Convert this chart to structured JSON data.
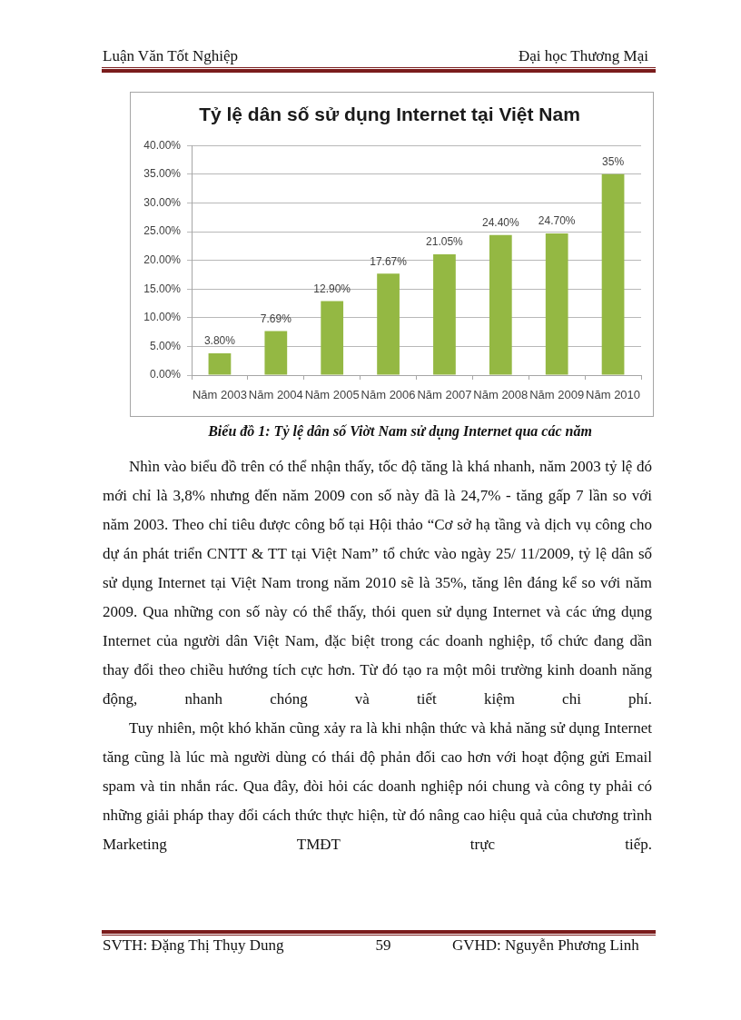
{
  "chart_data": {
    "type": "bar",
    "title": "Tỷ lệ dân số sử dụng Internet tại Việt Nam",
    "categories": [
      "Năm 2003",
      "Năm 2004",
      "Năm 2005",
      "Năm 2006",
      "Năm 2007",
      "Năm 2008",
      "Năm 2009",
      "Năm 2010"
    ],
    "values": [
      3.8,
      7.69,
      12.9,
      17.67,
      21.05,
      24.4,
      24.7,
      35
    ],
    "value_labels": [
      "3.80%",
      "7.69%",
      "12.90%",
      "17.67%",
      "21.05%",
      "24.40%",
      "24.70%",
      "35%"
    ],
    "color": "#94b843",
    "ylim": [
      0,
      40
    ],
    "yticks": [
      {
        "value": 0,
        "label": "0.00%"
      },
      {
        "value": 5,
        "label": "5.00%"
      },
      {
        "value": 10,
        "label": "10.00%"
      },
      {
        "value": 15,
        "label": "15.00%"
      },
      {
        "value": 20,
        "label": "20.00%"
      },
      {
        "value": 25,
        "label": "25.00%"
      },
      {
        "value": 30,
        "label": "30.00%"
      },
      {
        "value": 35,
        "label": "35.00%"
      },
      {
        "value": 40,
        "label": "40.00%"
      }
    ],
    "grid": "y",
    "annotations": [
      "Luận Văn Tốt Nghiệp",
      "Đại học Thương Mại",
      "Biểu đồ 1: Tỷ lệ dân số Viờt Nam sử dụng Internet qua các năm",
      "Nhìn vào biểu đồ trên có thể nhận thấy, tốc độ tăng là khá nhanh, năm 2003 tỷ lệ đó mới chỉ là 3,8% nhưng đến năm 2009 con số này đã là 24,7% - tăng gấp 7 lần so với năm 2003. Theo chỉ tiêu được công bố tại Hội thảo “Cơ sở hạ tầng và dịch vụ công cho dự án phát triển CNTT & TT tại Việt Nam” tổ chức vào ngày 25/ 11/2009, tỷ lệ dân số sử dụng Internet tại Việt Nam trong năm 2010 sẽ là 35%, tăng lên đáng kể so với năm 2009. Qua những con số này có thể thấy, thói quen sử dụng Internet và các ứng dụng Internet của người dân Việt Nam, đặc biệt trong các doanh nghiệp, tổ chức đang dần thay đổi theo chiều hướng tích cực hơn. Từ đó tạo ra một môi trường kinh doanh năng động, nhanh chóng và tiết kiệm chi phí.",
      "Tuy nhiên, một khó khăn cũng xảy ra là khi nhận thức và khả năng sử dụng Internet tăng cũng là lúc mà người dùng có thái độ phản đối cao hơn với hoạt động gửi Email spam và tin nhắn rác. Qua đây, đòi hỏi các doanh nghiệp nói chung và công ty phải có những giải pháp thay đổi cách thức thực hiện, từ đó nâng cao hiệu quả của chương trình Marketing TMĐT trực tiếp.",
      "SVTH: Đặng Thị Thụy Dung",
      "59",
      "GVHD: Nguyễn Phương Linh"
    ]
  }
}
